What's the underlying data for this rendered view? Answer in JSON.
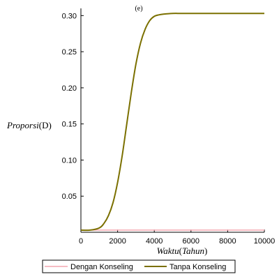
{
  "chart_data": {
    "type": "line",
    "title": "(e)",
    "xlabel_main": "Waktu",
    "xlabel_unit": "Tahun",
    "ylabel_main": "Proporsi",
    "ylabel_unit": "D",
    "xlim": [
      0,
      10000
    ],
    "ylim": [
      0,
      0.31
    ],
    "xticks": [
      0,
      2000,
      4000,
      6000,
      8000,
      10000
    ],
    "yticks": [
      0.05,
      0.1,
      0.15,
      0.2,
      0.25,
      0.3
    ],
    "grid": false,
    "legend_placement": "bottom",
    "series": [
      {
        "name": "Dengan Konseling",
        "color": "#f4a6b0",
        "x": [
          0,
          10000
        ],
        "y": [
          0.003,
          0.003
        ]
      },
      {
        "name": "Tanpa Konseling",
        "color": "#7b7000",
        "x": [
          0,
          500,
          1000,
          1250,
          1500,
          1750,
          2000,
          2250,
          2500,
          2750,
          3000,
          3250,
          3500,
          3750,
          4000,
          4250,
          4500,
          5000,
          5500,
          6000,
          7000,
          8000,
          9000,
          10000
        ],
        "y": [
          0.003,
          0.003,
          0.006,
          0.012,
          0.023,
          0.041,
          0.069,
          0.106,
          0.15,
          0.194,
          0.233,
          0.262,
          0.281,
          0.293,
          0.299,
          0.301,
          0.302,
          0.303,
          0.303,
          0.303,
          0.303,
          0.303,
          0.303,
          0.303
        ]
      }
    ]
  }
}
